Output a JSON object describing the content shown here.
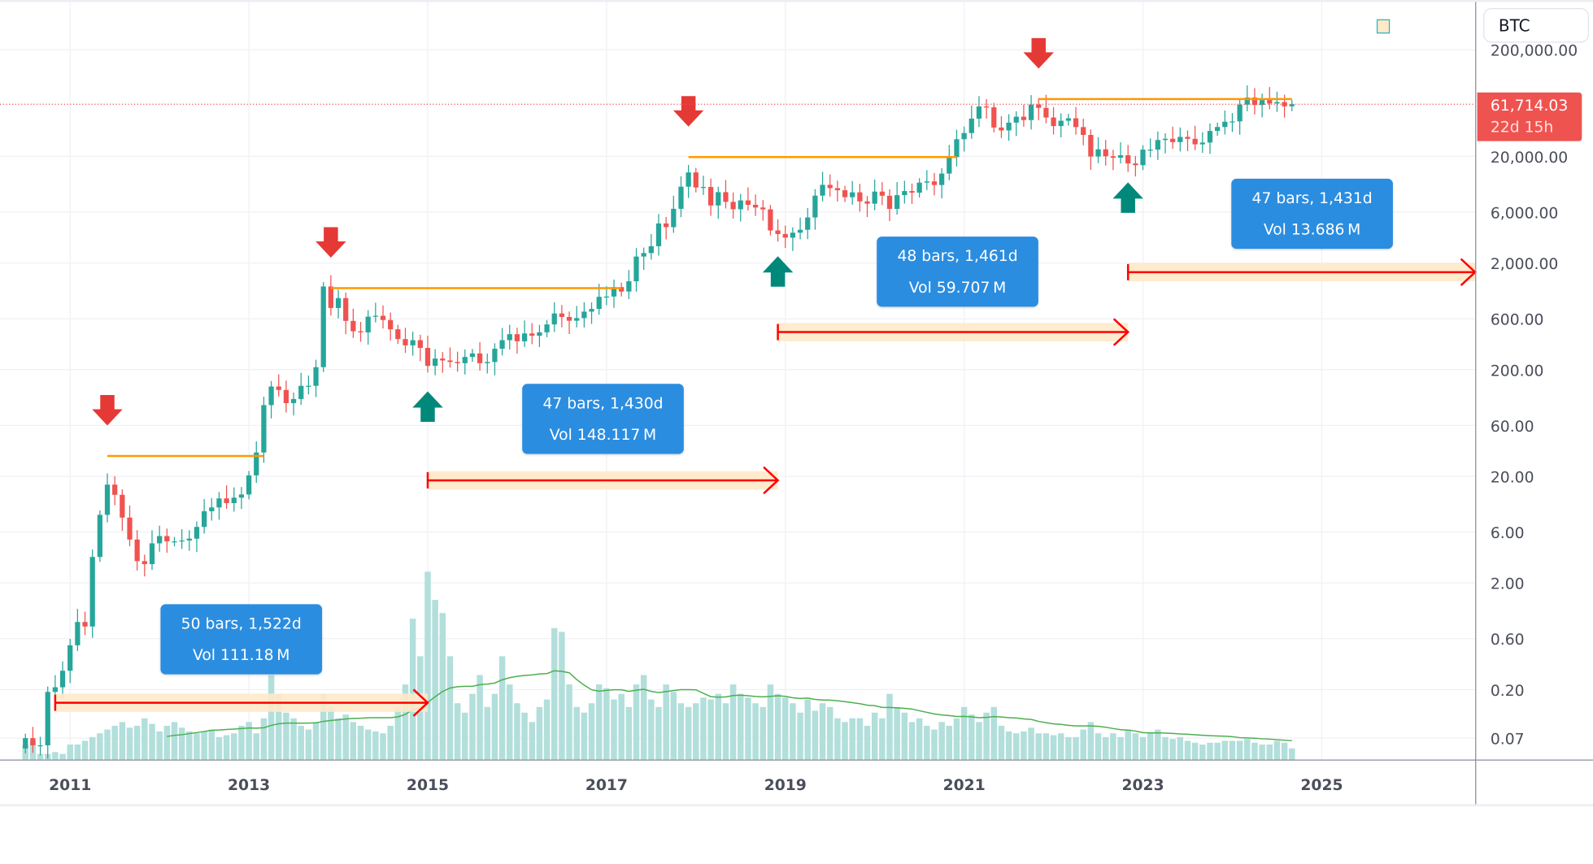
{
  "symbol": "BTC",
  "last_price": {
    "value": "61,714.03",
    "countdown": "22d 15h",
    "color": "#ef5350"
  },
  "colors": {
    "up": "#26a69a",
    "down": "#ef5350",
    "volume": "#b2dfdb",
    "volume_ma": "#4caf50",
    "level": "#ff9800",
    "range": "#ff0000",
    "range_band": "#ffe9c8",
    "measure_box": "#2b8de0"
  },
  "measures": [
    {
      "bars": "50 bars, 1,522d",
      "vol": "Vol 111.18 M"
    },
    {
      "bars": "47 bars, 1,430d",
      "vol": "Vol 148.117 M"
    },
    {
      "bars": "48 bars, 1,461d",
      "vol": "Vol 59.707 M"
    },
    {
      "bars": "47 bars, 1,431d",
      "vol": "Vol 13.686 M"
    }
  ],
  "chart_data": {
    "type": "candlestick",
    "interval": "1M",
    "scale": "log",
    "start": "2010-07",
    "closes": [
      0.07,
      0.06,
      0.06,
      0.19,
      0.21,
      0.3,
      0.52,
      0.86,
      0.78,
      3.5,
      8.7,
      16.7,
      13.4,
      8.2,
      5.1,
      3.2,
      3.0,
      4.7,
      5.5,
      4.9,
      4.9,
      5.0,
      5.2,
      6.7,
      9.4,
      10.2,
      12.4,
      11.2,
      12.6,
      13.5,
      20.4,
      33.4,
      93,
      139,
      129,
      97,
      106,
      141,
      141,
      211,
      1205,
      757,
      938,
      573,
      458,
      447,
      628,
      640,
      584,
      478,
      387,
      338,
      378,
      320,
      217,
      254,
      244,
      236,
      230,
      263,
      284,
      230,
      236,
      314,
      378,
      430,
      369,
      437,
      416,
      448,
      531,
      673,
      624,
      575,
      609,
      700,
      742,
      964,
      970,
      1190,
      1080,
      1348,
      2300,
      2480,
      2875,
      4700,
      4340,
      6450,
      10400,
      14150,
      10220,
      10330,
      6930,
      9240,
      7490,
      6390,
      7730,
      7030,
      6630,
      6370,
      4040,
      3740,
      3460,
      3850,
      4100,
      5350,
      8570,
      10820,
      10080,
      9630,
      8290,
      9200,
      7570,
      7200,
      9350,
      8550,
      6440,
      8660,
      9460,
      9140,
      11350,
      11650,
      10780,
      13800,
      19700,
      28990,
      33100,
      45200,
      58800,
      57700,
      37300,
      35040,
      41460,
      47100,
      43800,
      61300,
      57000,
      46300,
      38480,
      43190,
      45540,
      37640,
      31790,
      19940,
      23300,
      20050,
      19430,
      20490,
      17170,
      16550,
      23130,
      23150,
      28480,
      29250,
      27220,
      30480,
      29230,
      25940,
      26970,
      34650,
      37720,
      42280,
      42580,
      61130,
      71290,
      60640,
      67490,
      62680,
      64620,
      58970,
      61714.03
    ],
    "volume_relative": [
      8,
      10,
      3,
      3,
      4,
      3,
      8,
      8,
      10,
      12,
      14,
      16,
      18,
      20,
      17,
      18,
      22,
      19,
      15,
      18,
      20,
      17,
      15,
      14,
      15,
      16,
      12,
      13,
      14,
      18,
      20,
      14,
      22,
      45,
      35,
      25,
      22,
      18,
      16,
      20,
      35,
      28,
      22,
      24,
      20,
      18,
      16,
      15,
      14,
      18,
      28,
      40,
      75,
      55,
      100,
      85,
      78,
      55,
      30,
      25,
      35,
      45,
      28,
      35,
      55,
      40,
      30,
      25,
      20,
      28,
      32,
      70,
      68,
      40,
      28,
      25,
      30,
      40,
      38,
      32,
      35,
      28,
      40,
      45,
      32,
      28,
      40,
      36,
      30,
      28,
      30,
      33,
      32,
      35,
      30,
      40,
      35,
      33,
      30,
      28,
      40,
      35,
      33,
      30,
      25,
      32,
      26,
      30,
      28,
      22,
      20,
      22,
      22,
      18,
      25,
      22,
      35,
      28,
      25,
      20,
      22,
      18,
      16,
      20,
      18,
      22,
      28,
      24,
      20,
      25,
      28,
      18,
      15,
      14,
      15,
      17,
      14,
      14,
      13,
      14,
      12,
      12,
      16,
      20,
      14,
      12,
      14,
      12,
      16,
      14,
      12,
      14,
      16,
      12,
      11,
      12,
      10,
      9,
      8,
      9,
      9,
      10,
      10,
      10,
      11,
      9,
      8,
      8,
      10,
      9,
      6
    ],
    "volume_ma_period": 20,
    "y_ticks": [
      "200,000.00",
      "20,000.00",
      "6,000.00",
      "2,000.00",
      "600.00",
      "200.00",
      "60.00",
      "20.00",
      "6.00",
      "2.00",
      "0.60",
      "0.20",
      "0.07"
    ],
    "y_tick_values": [
      200000,
      20000,
      6000,
      2000,
      600,
      200,
      60,
      20,
      6,
      2,
      0.6,
      0.2,
      0.07
    ],
    "x_ticks": [
      "2011",
      "2013",
      "2015",
      "2017",
      "2019",
      "2021",
      "2023",
      "2025"
    ],
    "tops": [
      {
        "date": "2011-06",
        "price": 31
      },
      {
        "date": "2013-12",
        "price": 1163
      },
      {
        "date": "2017-12",
        "price": 19700
      },
      {
        "date": "2021-11",
        "price": 69000
      }
    ],
    "bottoms": [
      {
        "date": "2015-01",
        "price": 170
      },
      {
        "date": "2018-12",
        "price": 3150
      },
      {
        "date": "2022-11",
        "price": 15500
      }
    ],
    "ranges": [
      {
        "from": "2010-11",
        "to": "2015-01"
      },
      {
        "from": "2015-01",
        "to": "2018-12"
      },
      {
        "from": "2018-12",
        "to": "2022-11"
      },
      {
        "from": "2022-11",
        "to": "2026-10"
      }
    ]
  }
}
